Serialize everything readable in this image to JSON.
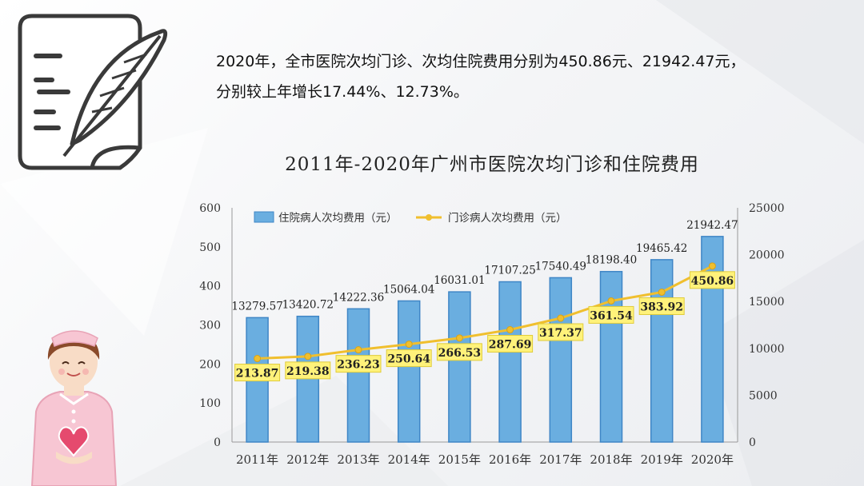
{
  "intro": {
    "line1": "2020年，全市医院次均门诊、次均住院费用分别为450.86元、21942.47元，",
    "line2": "分别较上年增长17.44%、12.73%。"
  },
  "colors": {
    "bar": "#6aaee0",
    "bar_edge": "#3f86c6",
    "line": "#f0bf2e",
    "label_bg": "#fff27a"
  },
  "icons": [
    "notepad-feather-icon",
    "nurse-heart-illustration"
  ],
  "chart_data": {
    "type": "bar+line",
    "title": "2011年-2020年广州市医院次均门诊和住院费用",
    "categories": [
      "2011年",
      "2012年",
      "2013年",
      "2014年",
      "2015年",
      "2016年",
      "2017年",
      "2018年",
      "2019年",
      "2020年"
    ],
    "series": [
      {
        "name": "住院病人次均费用（元）",
        "type": "bar",
        "axis": "right",
        "values": [
          13279.57,
          13420.72,
          14222.36,
          15064.04,
          16031.01,
          17107.25,
          17540.49,
          18198.4,
          19465.42,
          21942.47
        ],
        "labels": [
          "13279.57",
          "13420.72",
          "14222.36",
          "15064.04",
          "16031.01",
          "17107.25",
          "17540.49",
          "18198.40",
          "19465.42",
          "21942.47"
        ]
      },
      {
        "name": "门诊病人次均费用（元）",
        "type": "line",
        "axis": "left",
        "values": [
          213.87,
          219.38,
          236.23,
          250.64,
          266.53,
          287.69,
          317.37,
          361.54,
          383.92,
          450.86
        ],
        "labels": [
          "213.87",
          "219.38",
          "236.23",
          "250.64",
          "266.53",
          "287.69",
          "317.37",
          "361.54",
          "383.92",
          "450.86"
        ]
      }
    ],
    "y_left": {
      "min": 0,
      "max": 600,
      "ticks": [
        "0",
        "100",
        "200",
        "300",
        "400",
        "500",
        "600"
      ]
    },
    "y_right": {
      "min": 0,
      "max": 25000,
      "ticks": [
        "0",
        "5000",
        "10000",
        "15000",
        "20000",
        "25000"
      ]
    },
    "legend_position": "top-left",
    "grid": false
  }
}
